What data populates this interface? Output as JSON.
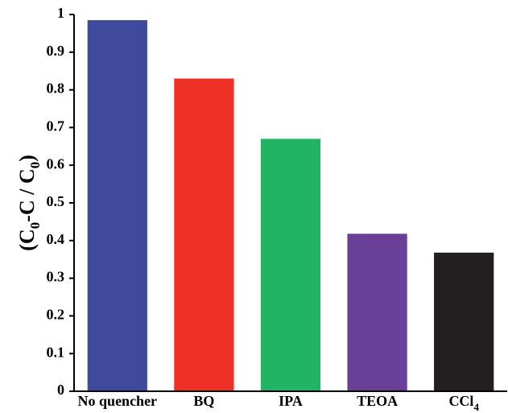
{
  "chart_data": {
    "type": "bar",
    "title": "",
    "xlabel": "",
    "ylabel": {
      "prefix": "(C",
      "sub1": "0",
      "mid": "-C / C",
      "sub2": "0",
      "suffix": ")"
    },
    "categories": [
      {
        "base": "No quencher",
        "sub": ""
      },
      {
        "base": "BQ",
        "sub": ""
      },
      {
        "base": "IPA",
        "sub": ""
      },
      {
        "base": "TEOA",
        "sub": ""
      },
      {
        "base": "CCl",
        "sub": "4"
      }
    ],
    "values": [
      0.985,
      0.83,
      0.67,
      0.418,
      0.368
    ],
    "colors": [
      "#3f4a9c",
      "#ee3124",
      "#21b464",
      "#6a3f97",
      "#231f20"
    ],
    "ylim": [
      0,
      1
    ],
    "yticks": [
      0,
      0.1,
      0.2,
      0.3,
      0.4,
      0.5,
      0.6,
      0.7,
      0.8,
      0.9,
      1
    ],
    "ytick_labels": [
      "0",
      "0.1",
      "0.2",
      "0.3",
      "0.4",
      "0.5",
      "0.6",
      "0.7",
      "0.8",
      "0.9",
      "1"
    ],
    "grid": false,
    "legend": "none"
  }
}
